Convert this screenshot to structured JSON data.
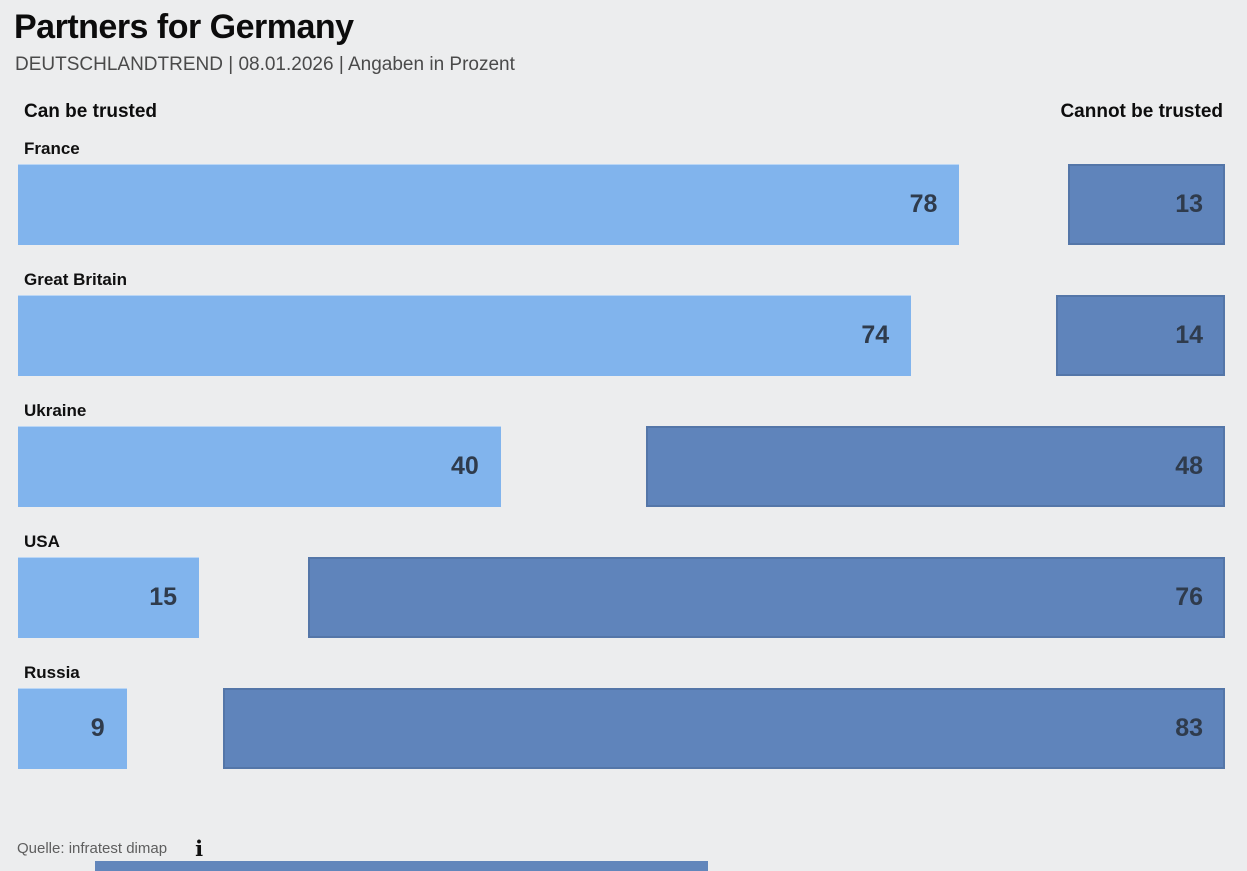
{
  "header": {
    "title": "Partners for Germany",
    "subtitle": "DEUTSCHLANDTREND | 08.01.2026 | Angaben in Prozent"
  },
  "column_headers": {
    "left": "Can be trusted",
    "right": "Cannot be trusted"
  },
  "chart_data": {
    "type": "bar",
    "orientation": "horizontal",
    "diverging": true,
    "title": "Partners for Germany",
    "subtitle": "DEUTSCHLANDTREND | 08.01.2026 | Angaben in Prozent",
    "unit": "Prozent (%)",
    "value_range": [
      0,
      100
    ],
    "grid": false,
    "legend_position": "column-headers-top",
    "categories": [
      "France",
      "Great Britain",
      "Ukraine",
      "USA",
      "Russia"
    ],
    "series": [
      {
        "name": "Can be trusted",
        "color": "#81B4ED",
        "values": [
          78,
          74,
          40,
          15,
          9
        ]
      },
      {
        "name": "Cannot be trusted",
        "color": "#5F84BB",
        "values": [
          13,
          14,
          48,
          76,
          83
        ]
      }
    ]
  },
  "footer": {
    "source": "Quelle: infratest dimap",
    "info_icon_glyph": "i"
  },
  "colors": {
    "background": "#ECEDEE",
    "bar_trust": "#81B4ED",
    "bar_distrust": "#5F84BB",
    "value_text": "#2F3B4C",
    "progress_bar": "#6286BB"
  }
}
